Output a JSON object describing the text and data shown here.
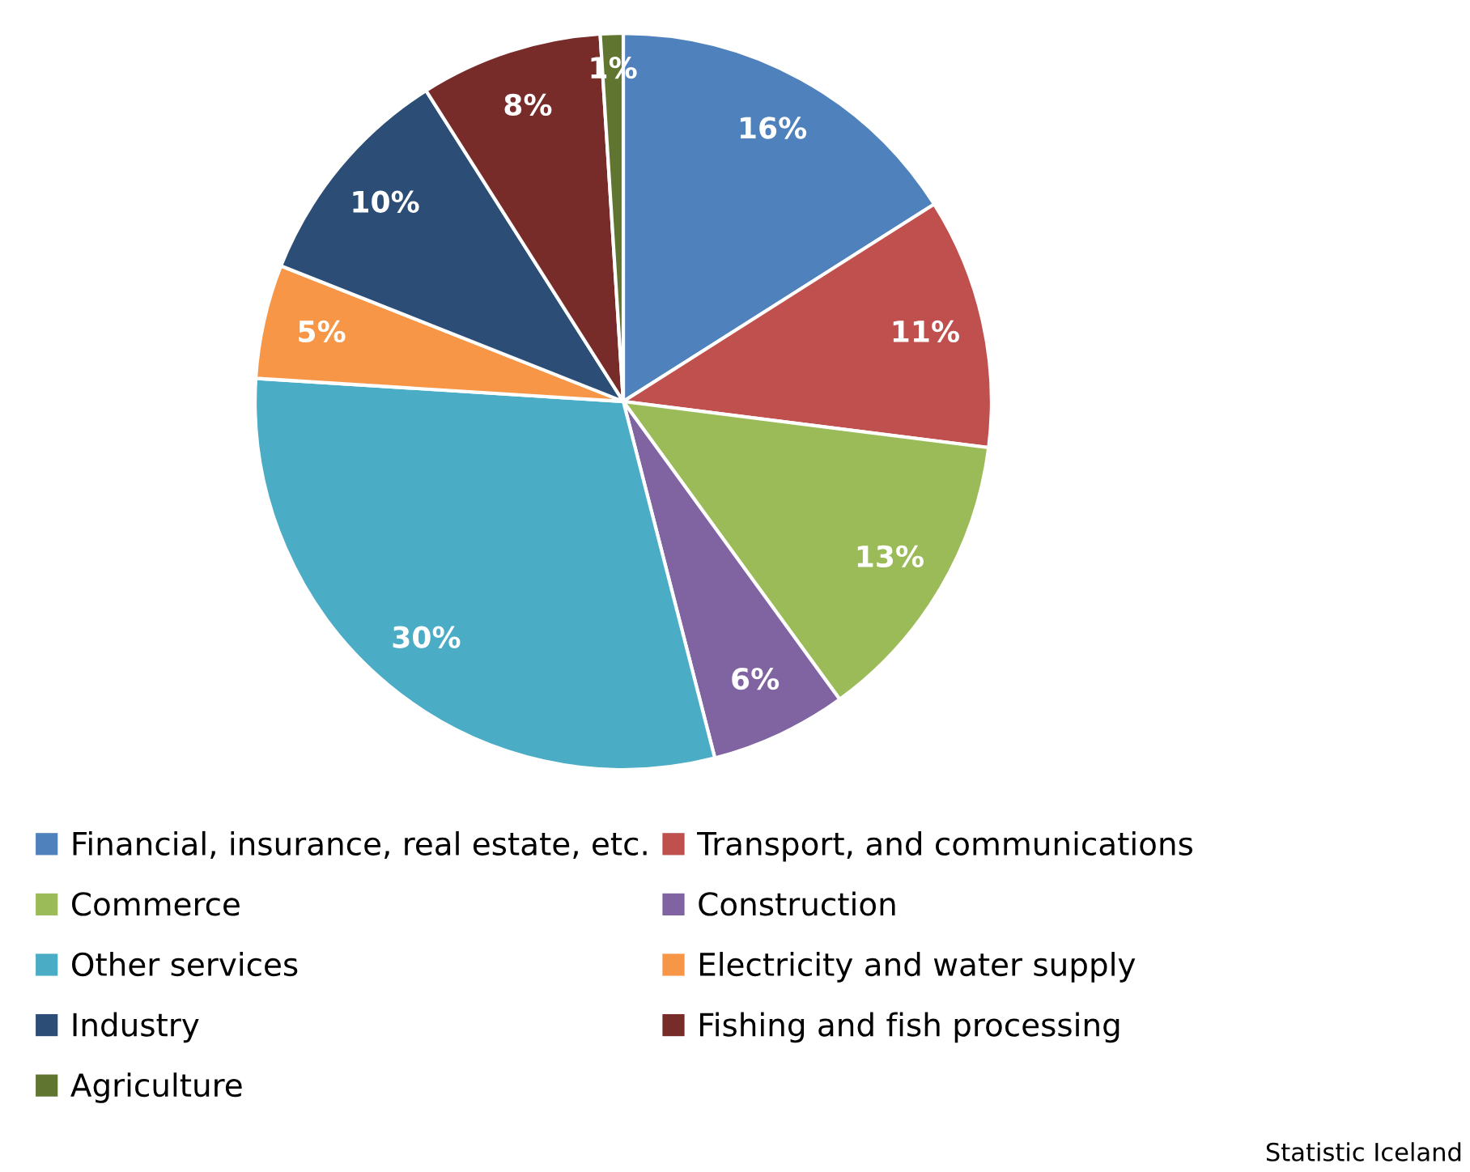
{
  "chart_data": {
    "type": "pie",
    "categories": [
      "Financial, insurance, real estate, etc.",
      "Transport, and communications",
      "Commerce",
      "Construction",
      "Other services",
      "Electricity and water supply",
      "Industry",
      "Fishing and fish processing",
      "Agriculture"
    ],
    "values": [
      16,
      11,
      13,
      6,
      30,
      5,
      10,
      8,
      1
    ],
    "colors": [
      "#4f81bd",
      "#c0504d",
      "#9bbb59",
      "#8064a2",
      "#4bacc6",
      "#f79646",
      "#2c4d75",
      "#772c2a",
      "#5f7530"
    ],
    "value_labels": [
      "16%",
      "11%",
      "13%",
      "6%",
      "30%",
      "5%",
      "10%",
      "8%",
      "1%"
    ],
    "legend": "bottom",
    "annotations": [
      "Statistic Iceland"
    ]
  }
}
